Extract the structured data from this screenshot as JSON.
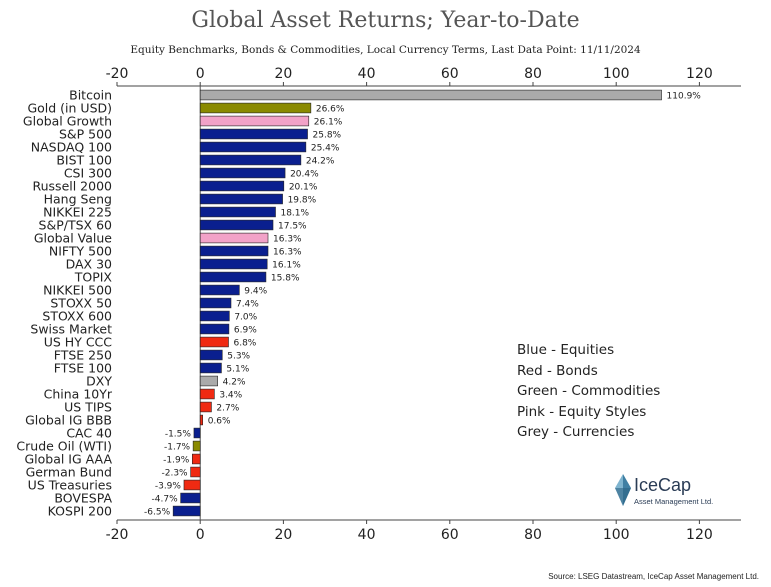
{
  "title": "Global Asset Returns; Year-to-Date",
  "subtitle": "Equity Benchmarks, Bonds & Commodities, Local Currency Terms, Last Data Point: 11/11/2024",
  "source": "Source: LSEG Datastream, IceCap Asset Management Ltd.",
  "logo": {
    "name": "IceCap",
    "tagline": "Asset Management Ltd."
  },
  "legend": [
    "Blue - Equities",
    "Red - Bonds",
    "Green - Commodities",
    "Pink - Equity Styles",
    "Grey - Currencies"
  ],
  "colors": {
    "Equities": "#0a1f8f",
    "Bonds": "#f02a12",
    "Commodities": "#8a8a00",
    "Equity Styles": "#f2a2c8",
    "Currencies": "#aaaaaa"
  },
  "chart_data": {
    "type": "bar",
    "orientation": "horizontal",
    "xlim": [
      -20,
      130
    ],
    "xticks": [
      -20,
      0,
      20,
      40,
      60,
      80,
      100,
      120
    ],
    "grid": false,
    "categories": [
      "Bitcoin",
      "Gold (in USD)",
      "Global Growth",
      "S&P 500",
      "NASDAQ 100",
      "BIST 100",
      "CSI 300",
      "Russell 2000",
      "Hang Seng",
      "NIKKEI 225",
      "S&P/TSX 60",
      "Global Value",
      "NIFTY 500",
      "DAX 30",
      "TOPIX",
      "NIKKEI 500",
      "STOXX 50",
      "STOXX 600",
      "Swiss Market",
      "US HY CCC",
      "FTSE 250",
      "FTSE 100",
      "DXY",
      "China 10Yr",
      "US TIPS",
      "Global IG BBB",
      "CAC 40",
      "Crude Oil (WTI)",
      "Global IG AAA",
      "German Bund",
      "US Treasuries",
      "BOVESPA",
      "KOSPI 200"
    ],
    "values": [
      110.9,
      26.6,
      26.1,
      25.8,
      25.4,
      24.2,
      20.4,
      20.1,
      19.8,
      18.1,
      17.5,
      16.3,
      16.3,
      16.1,
      15.8,
      9.4,
      7.4,
      7.0,
      6.9,
      6.8,
      5.3,
      5.1,
      4.2,
      3.4,
      2.7,
      0.6,
      -1.5,
      -1.7,
      -1.9,
      -2.3,
      -3.9,
      -4.7,
      -6.5
    ],
    "labels": [
      "110.9%",
      "26.6%",
      "26.1%",
      "25.8%",
      "25.4%",
      "24.2%",
      "20.4%",
      "20.1%",
      "19.8%",
      "18.1%",
      "17.5%",
      "16.3%",
      "16.3%",
      "16.1%",
      "15.8%",
      "9.4%",
      "7.4%",
      "7.0%",
      "6.9%",
      "6.8%",
      "5.3%",
      "5.1%",
      "4.2%",
      "3.4%",
      "2.7%",
      "0.6%",
      "-1.5%",
      "-1.7%",
      "-1.9%",
      "-2.3%",
      "-3.9%",
      "-4.7%",
      "-6.5%"
    ],
    "asset_class": [
      "Currencies",
      "Commodities",
      "Equity Styles",
      "Equities",
      "Equities",
      "Equities",
      "Equities",
      "Equities",
      "Equities",
      "Equities",
      "Equities",
      "Equity Styles",
      "Equities",
      "Equities",
      "Equities",
      "Equities",
      "Equities",
      "Equities",
      "Equities",
      "Bonds",
      "Equities",
      "Equities",
      "Currencies",
      "Bonds",
      "Bonds",
      "Bonds",
      "Equities",
      "Commodities",
      "Bonds",
      "Bonds",
      "Bonds",
      "Equities",
      "Equities"
    ]
  }
}
